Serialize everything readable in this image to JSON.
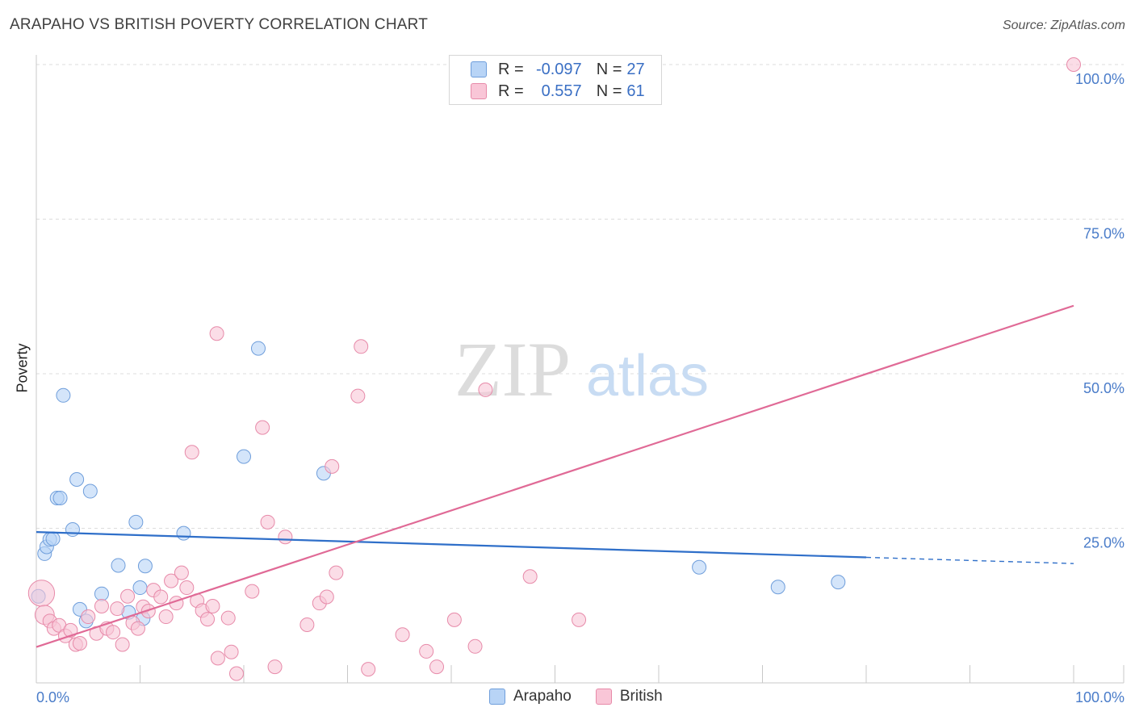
{
  "title": "ARAPAHO VS BRITISH POVERTY CORRELATION CHART",
  "source": "Source: ZipAtlas.com",
  "watermark": {
    "zip": "ZIP",
    "atlas": "atlas"
  },
  "legend": {
    "r_label": "R =",
    "n_label": "N =",
    "series": [
      {
        "name": "Arapaho",
        "r": "-0.097",
        "n": "27"
      },
      {
        "name": "British",
        "r": "0.557",
        "n": "61"
      }
    ]
  },
  "colors": {
    "arapaho_fill": "#b8d4f6",
    "arapaho_stroke": "#6f9edb",
    "arapaho_line": "#2f6fc9",
    "british_fill": "#f9c6d7",
    "british_stroke": "#e78aa9",
    "british_line": "#e06a96",
    "tick_label": "#4a7cc9",
    "grid": "#dddddd",
    "watermark": "#d9d9d9",
    "watermark_atlas": "#c5daf3"
  },
  "chart_data": {
    "type": "scatter",
    "title": "ARAPAHO VS BRITISH POVERTY CORRELATION CHART",
    "xlabel": "",
    "ylabel": "Poverty",
    "xlim": [
      0,
      100
    ],
    "ylim": [
      0,
      100
    ],
    "x_tick_labels": [
      "0.0%",
      "100.0%"
    ],
    "y_ticks": [
      25,
      50,
      75,
      100
    ],
    "y_tick_labels": [
      "25.0%",
      "50.0%",
      "75.0%",
      "100.0%"
    ],
    "grid": true,
    "series": [
      {
        "name": "Arapaho",
        "points": [
          [
            0.2,
            14.0,
            1
          ],
          [
            0.8,
            20.9,
            1
          ],
          [
            1.0,
            22.0,
            1
          ],
          [
            1.3,
            23.2,
            1
          ],
          [
            1.6,
            23.3,
            1
          ],
          [
            2.0,
            29.9,
            1
          ],
          [
            2.3,
            29.9,
            1
          ],
          [
            2.6,
            46.5,
            1
          ],
          [
            3.5,
            24.8,
            1
          ],
          [
            3.9,
            32.9,
            1
          ],
          [
            4.2,
            11.9,
            1
          ],
          [
            4.8,
            10.0,
            1
          ],
          [
            5.2,
            31.0,
            1
          ],
          [
            6.3,
            14.4,
            1
          ],
          [
            7.9,
            19.0,
            1
          ],
          [
            8.9,
            11.4,
            1
          ],
          [
            9.6,
            26.0,
            1
          ],
          [
            10.0,
            15.4,
            1
          ],
          [
            10.3,
            10.4,
            1
          ],
          [
            10.5,
            18.9,
            1
          ],
          [
            14.2,
            24.2,
            1
          ],
          [
            20.0,
            36.6,
            1
          ],
          [
            21.4,
            54.1,
            1
          ],
          [
            27.7,
            33.9,
            1
          ],
          [
            63.9,
            18.7,
            1
          ],
          [
            71.5,
            15.5,
            1
          ],
          [
            77.3,
            16.3,
            1
          ]
        ],
        "trend": {
          "x": [
            0,
            80
          ],
          "y": [
            24.4,
            20.3
          ],
          "dashed_to": [
            100,
            19.3
          ]
        }
      },
      {
        "name": "British",
        "points": [
          [
            0.5,
            14.5,
            3
          ],
          [
            0.8,
            11.0,
            2
          ],
          [
            1.3,
            10.0,
            1
          ],
          [
            1.7,
            8.8,
            1
          ],
          [
            2.2,
            9.3,
            1
          ],
          [
            2.8,
            7.6,
            1
          ],
          [
            3.3,
            8.5,
            1
          ],
          [
            3.8,
            6.2,
            1
          ],
          [
            4.2,
            6.4,
            1
          ],
          [
            5.0,
            10.7,
            1
          ],
          [
            5.8,
            8.0,
            1
          ],
          [
            6.3,
            12.4,
            1
          ],
          [
            6.8,
            8.8,
            1
          ],
          [
            7.4,
            8.2,
            1
          ],
          [
            7.8,
            12.0,
            1
          ],
          [
            8.3,
            6.2,
            1
          ],
          [
            8.8,
            14.0,
            1
          ],
          [
            9.3,
            9.7,
            1
          ],
          [
            9.8,
            8.8,
            1
          ],
          [
            10.3,
            12.3,
            1
          ],
          [
            10.8,
            11.6,
            1
          ],
          [
            11.3,
            15.0,
            1
          ],
          [
            12.0,
            13.9,
            1
          ],
          [
            12.5,
            10.7,
            1
          ],
          [
            13.0,
            16.5,
            1
          ],
          [
            13.5,
            12.9,
            1
          ],
          [
            14.0,
            17.8,
            1
          ],
          [
            14.5,
            15.4,
            1
          ],
          [
            15.0,
            37.3,
            1
          ],
          [
            15.5,
            13.3,
            1
          ],
          [
            16.0,
            11.7,
            1
          ],
          [
            16.5,
            10.3,
            1
          ],
          [
            17.0,
            12.4,
            1
          ],
          [
            17.4,
            56.5,
            1
          ],
          [
            17.5,
            4.0,
            1
          ],
          [
            18.5,
            10.5,
            1
          ],
          [
            18.8,
            5.0,
            1
          ],
          [
            19.3,
            1.5,
            1
          ],
          [
            20.8,
            14.8,
            1
          ],
          [
            21.8,
            41.3,
            1
          ],
          [
            22.3,
            26.0,
            1
          ],
          [
            23.0,
            2.6,
            1
          ],
          [
            24.0,
            23.6,
            1
          ],
          [
            26.1,
            9.4,
            1
          ],
          [
            27.3,
            12.9,
            1
          ],
          [
            28.0,
            13.9,
            1
          ],
          [
            28.5,
            35.0,
            1
          ],
          [
            28.9,
            17.8,
            1
          ],
          [
            31.0,
            46.4,
            1
          ],
          [
            31.3,
            54.4,
            1
          ],
          [
            32.0,
            2.2,
            1
          ],
          [
            35.3,
            7.8,
            1
          ],
          [
            37.6,
            5.1,
            1
          ],
          [
            38.6,
            2.6,
            1
          ],
          [
            40.3,
            10.2,
            1
          ],
          [
            42.3,
            5.9,
            1
          ],
          [
            43.3,
            47.4,
            1
          ],
          [
            47.6,
            17.2,
            1
          ],
          [
            52.3,
            10.2,
            1
          ],
          [
            100.0,
            100.0,
            1
          ]
        ],
        "trend": {
          "x": [
            0,
            100
          ],
          "y": [
            5.8,
            61.0
          ]
        }
      }
    ]
  }
}
